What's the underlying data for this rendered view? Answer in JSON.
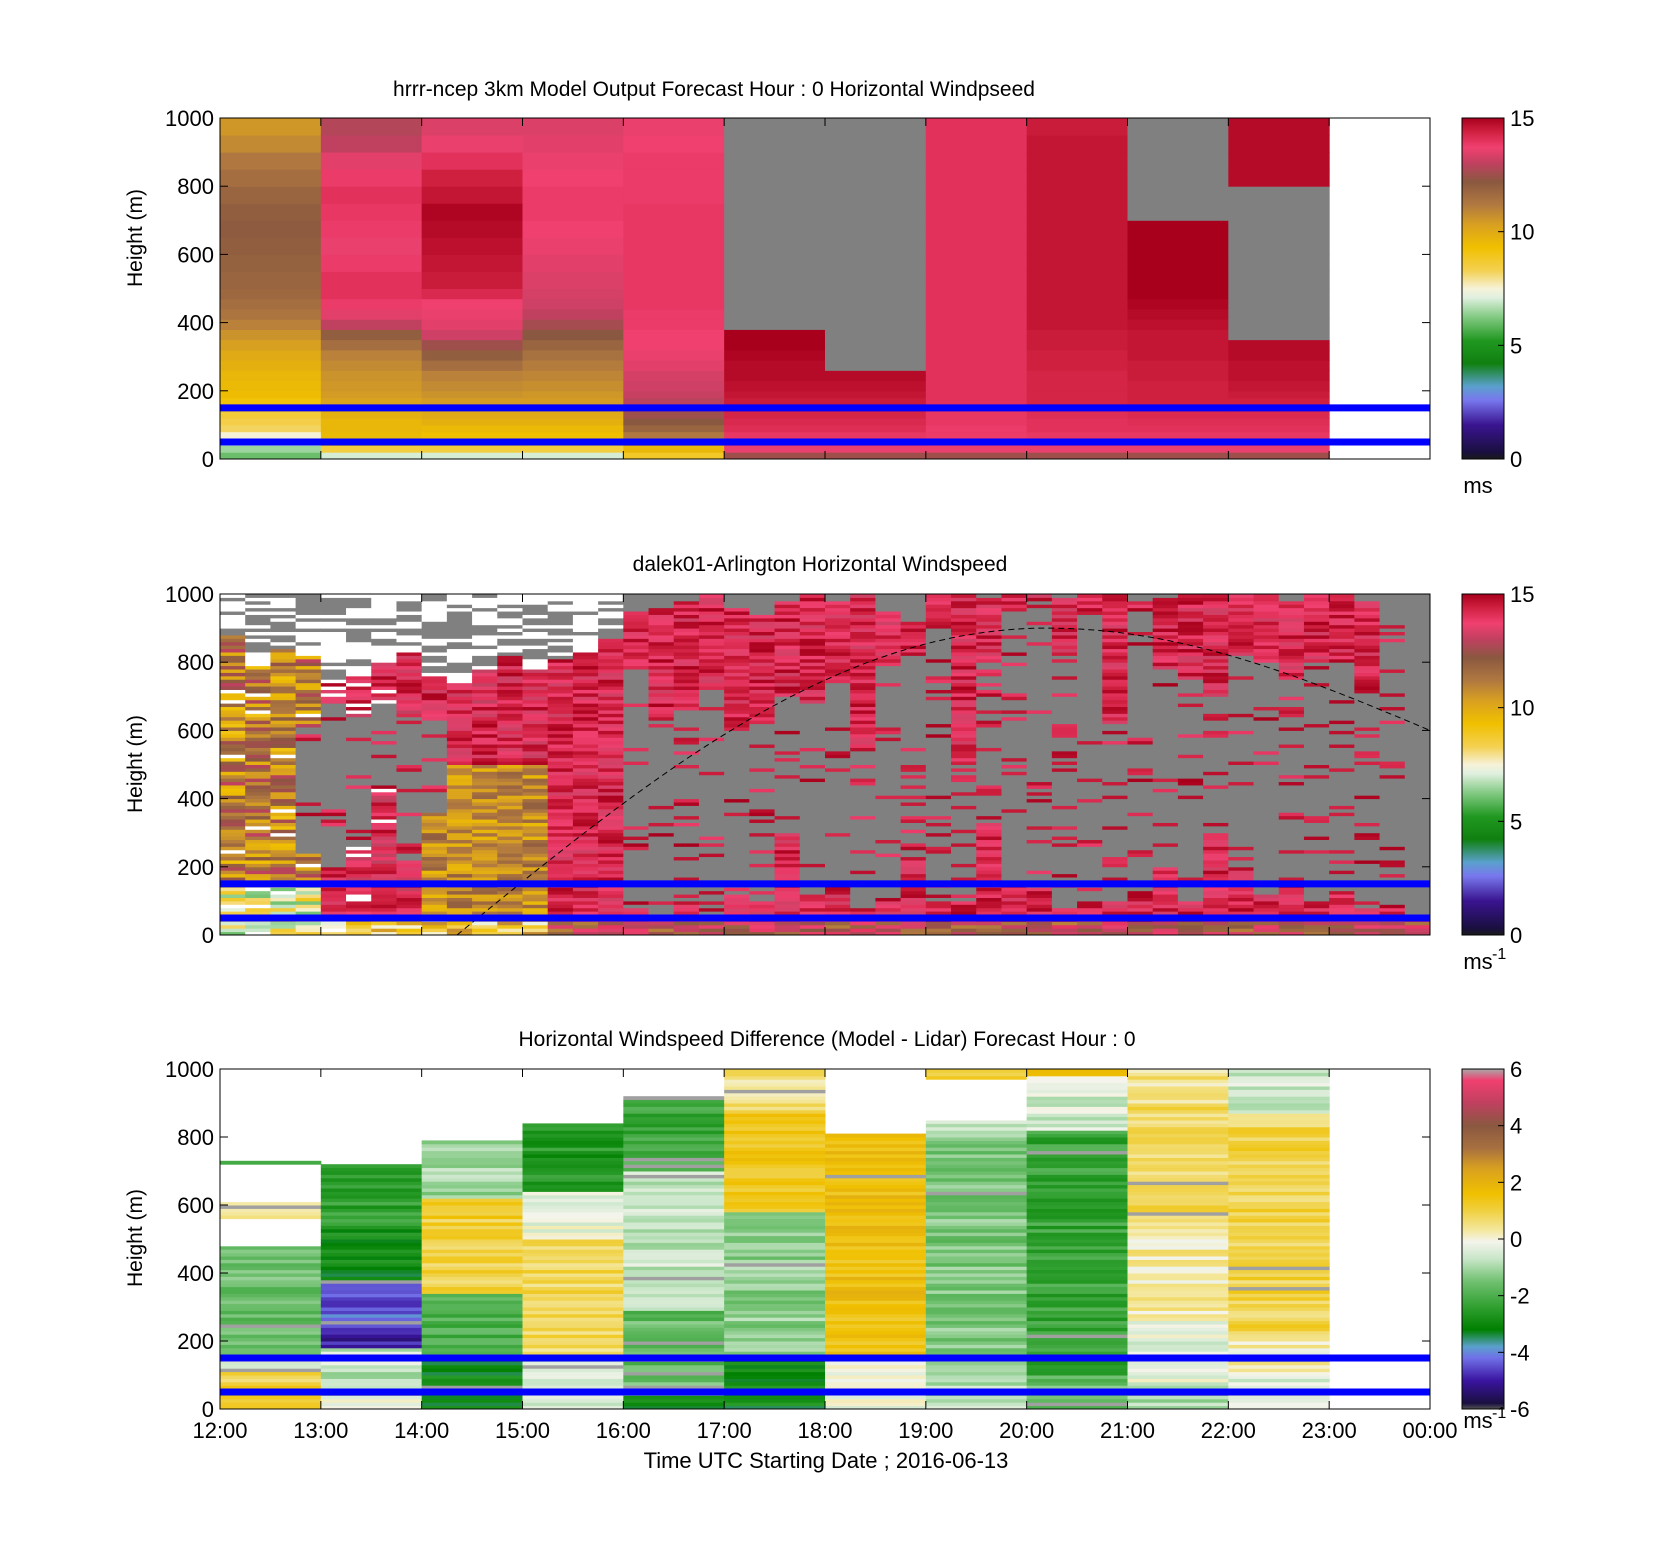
{
  "x_axis": {
    "label": "Time UTC  Starting Date ; 2016-06-13",
    "ticks": [
      "12:00",
      "13:00",
      "14:00",
      "15:00",
      "16:00",
      "17:00",
      "18:00",
      "19:00",
      "20:00",
      "21:00",
      "22:00",
      "23:00",
      "00:00"
    ],
    "range_hours": [
      12,
      24
    ]
  },
  "reference_lines_m": [
    150,
    50
  ],
  "reference_line_color": "#0000ff",
  "nodata_color": "#808080",
  "chart_data": [
    {
      "id": "model",
      "type": "heatmap",
      "title": "hrrr-ncep 3km Model Output   Forecast Hour : 0 Horizontal Windpseed",
      "ylabel": "Height (m)",
      "ylim": [
        0,
        1000
      ],
      "yticks": [
        "0",
        "200",
        "400",
        "600",
        "800",
        "1000"
      ],
      "colorbar": {
        "min": 0,
        "max": 15,
        "ticks": [
          "0",
          "5",
          "10",
          "15"
        ],
        "unit": "ms",
        "unit_sup": ""
      },
      "hours": [
        12,
        13,
        14,
        15,
        16,
        17,
        18,
        19,
        20,
        21,
        22
      ],
      "levels_m": [
        20,
        40,
        60,
        80,
        100,
        120,
        140,
        160,
        180,
        200,
        230,
        260,
        290,
        320,
        350,
        380,
        410,
        440,
        470,
        500,
        550,
        600,
        650,
        700,
        750,
        800,
        850,
        900,
        950,
        1000
      ],
      "values": [
        [
          6,
          6.5,
          7,
          7.5,
          8.2,
          8.4,
          8.6,
          9,
          9.2,
          9.4,
          9.5,
          9.6,
          9.8,
          10,
          10.3,
          10.6,
          11,
          11.3,
          11.5,
          11.7,
          11.8,
          11.9,
          12,
          12.1,
          12,
          11.8,
          11.5,
          11.2,
          10.8,
          10.5
        ],
        [
          7,
          8.5,
          9.3,
          9.5,
          9.6,
          9.6,
          9.8,
          10,
          10.2,
          10.4,
          10.5,
          10.6,
          10.8,
          11,
          11.5,
          12,
          13,
          13.5,
          13.8,
          14,
          14,
          13.8,
          13.6,
          13.8,
          13.9,
          14,
          13.8,
          13.5,
          13,
          12.8
        ],
        [
          7,
          8.5,
          9.1,
          9.3,
          9.5,
          9.8,
          10,
          10.2,
          10.4,
          10.6,
          10.8,
          11,
          11.5,
          12,
          12.5,
          13.2,
          13.5,
          13.6,
          13.7,
          14.2,
          14.5,
          14.6,
          14.7,
          14.8,
          14.9,
          14.6,
          14.4,
          14,
          13.6,
          13.4
        ],
        [
          7,
          8.5,
          9,
          9.3,
          9.5,
          9.8,
          10,
          10.2,
          10.4,
          10.5,
          10.7,
          10.9,
          11.1,
          11.4,
          11.8,
          12.2,
          12.6,
          13,
          13.2,
          13.3,
          13.4,
          13.5,
          13.6,
          13.7,
          13.8,
          13.8,
          13.7,
          13.6,
          13.5,
          13.4
        ],
        [
          8.8,
          9.6,
          10.6,
          11.2,
          11.8,
          12.2,
          12.5,
          12.7,
          12.9,
          13.1,
          13.2,
          13.3,
          13.5,
          13.6,
          13.7,
          13.7,
          13.8,
          13.8,
          13.9,
          13.9,
          13.9,
          13.9,
          13.9,
          13.9,
          13.9,
          13.8,
          13.8,
          13.8,
          13.7,
          13.6
        ],
        [
          12.5,
          13.6,
          13.8,
          13.9,
          14.1,
          14.2,
          14.3,
          14.4,
          14.5,
          14.6,
          14.7,
          14.8,
          14.8,
          14.9,
          15,
          15,
          null,
          null,
          null,
          null,
          null,
          null,
          null,
          null,
          null,
          null,
          null,
          null,
          null,
          null
        ],
        [
          12.5,
          13.6,
          13.8,
          13.9,
          14.1,
          14.2,
          14.3,
          14.4,
          14.5,
          14.6,
          14.7,
          14.8,
          null,
          null,
          null,
          null,
          null,
          null,
          null,
          null,
          null,
          null,
          null,
          null,
          null,
          null,
          null,
          null,
          null,
          null
        ],
        [
          12.5,
          13.6,
          13.7,
          13.8,
          13.8,
          13.9,
          13.9,
          14,
          14,
          14,
          14,
          14,
          14,
          14,
          14,
          14,
          14,
          14,
          14,
          14,
          14,
          14,
          14,
          14,
          14,
          14,
          14,
          14,
          14,
          14
        ],
        [
          12.5,
          13.6,
          13.8,
          13.9,
          14,
          14,
          14.1,
          14.2,
          14.3,
          14.3,
          14.3,
          14.3,
          14.4,
          14.4,
          14.5,
          14.5,
          14.6,
          14.6,
          14.6,
          14.6,
          14.6,
          14.6,
          14.6,
          14.6,
          14.6,
          14.6,
          14.6,
          14.6,
          14.6,
          14.5
        ],
        [
          12.5,
          13.6,
          13.8,
          13.9,
          14,
          14.1,
          14.2,
          14.3,
          14.4,
          14.4,
          14.4,
          14.5,
          14.5,
          14.6,
          14.6,
          14.6,
          14.7,
          14.8,
          14.9,
          15,
          15,
          15,
          15,
          15,
          null,
          null,
          null,
          null,
          null,
          null
        ],
        [
          12.5,
          13.6,
          13.8,
          13.9,
          14,
          14.1,
          14.2,
          14.3,
          14.4,
          14.5,
          14.6,
          14.7,
          14.7,
          14.8,
          14.8,
          null,
          null,
          null,
          null,
          null,
          null,
          null,
          null,
          null,
          null,
          null,
          14.8,
          14.8,
          14.8,
          14.8
        ]
      ]
    },
    {
      "id": "lidar",
      "type": "heatmap",
      "title": "dalek01-Arlington  Horizontal Windspeed",
      "ylabel": "Height (m)",
      "ylim": [
        0,
        1000
      ],
      "yticks": [
        "0",
        "200",
        "400",
        "600",
        "800",
        "1000"
      ],
      "colorbar": {
        "min": 0,
        "max": 15,
        "ticks": [
          "0",
          "5",
          "10",
          "15"
        ],
        "unit": "ms",
        "unit_sup": "-1"
      },
      "period_hours": 0.25,
      "top_valid_m": [
        880,
        790,
        840,
        820,
        740,
        760,
        800,
        830,
        760,
        740,
        780,
        820,
        780,
        810,
        830,
        870,
        950,
        960,
        980,
        1000,
        960,
        940,
        980,
        1000,
        980,
        1000,
        950,
        920,
        1000,
        1000,
        990,
        1000,
        1000,
        990,
        1000,
        1000,
        980,
        990,
        1000,
        1000,
        1000,
        1000,
        980,
        1000,
        1000,
        980,
        920,
        60
      ],
      "gray_band_m": [
        [
          null,
          null
        ],
        [
          null,
          null
        ],
        [
          null,
          null
        ],
        [
          240,
          610
        ],
        [
          200,
          680
        ],
        [
          260,
          640
        ],
        [
          440,
          680
        ],
        [
          220,
          640
        ],
        [
          360,
          630
        ],
        [
          null,
          null
        ],
        [
          null,
          null
        ],
        [
          null,
          null
        ],
        [
          null,
          null
        ],
        [
          null,
          null
        ],
        [
          null,
          null
        ],
        [
          null,
          null
        ],
        [
          80,
          780
        ],
        [
          60,
          640
        ],
        [
          100,
          660
        ],
        [
          60,
          720
        ],
        [
          120,
          600
        ],
        [
          90,
          620
        ],
        [
          300,
          700
        ],
        [
          120,
          680
        ],
        [
          150,
          740
        ],
        [
          80,
          560
        ],
        [
          110,
          800
        ],
        [
          220,
          820
        ],
        [
          100,
          900
        ],
        [
          100,
          500
        ],
        [
          330,
          800
        ],
        [
          160,
          950
        ],
        [
          140,
          980
        ],
        [
          80,
          820
        ],
        [
          100,
          950
        ],
        [
          100,
          620
        ],
        [
          130,
          950
        ],
        [
          200,
          780
        ],
        [
          100,
          750
        ],
        [
          300,
          700
        ],
        [
          200,
          820
        ],
        [
          120,
          800
        ],
        [
          150,
          750
        ],
        [
          100,
          800
        ],
        [
          130,
          800
        ],
        [
          80,
          720
        ],
        [
          80,
          960
        ],
        [
          100,
          300
        ]
      ],
      "curve": {
        "description": "dashed",
        "start_hour": 14.35,
        "start_m": 0,
        "peak_hour": 20.2,
        "peak_m": 900,
        "end_hour": 24,
        "end_m": 600
      }
    },
    {
      "id": "difference",
      "type": "heatmap",
      "title": "Horizontal Windspeed Difference (Model - Lidar) Forecast Hour : 0",
      "ylabel": "Height (m)",
      "ylim": [
        0,
        1000
      ],
      "yticks": [
        "0",
        "200",
        "400",
        "600",
        "800",
        "1000"
      ],
      "colorbar": {
        "min": -6,
        "max": 6,
        "ticks": [
          "-6",
          "-4",
          "-2",
          "0",
          "2",
          "4",
          "6"
        ],
        "unit": "ms",
        "unit_sup": "-1"
      },
      "hours": [
        12,
        13,
        14,
        15,
        16,
        17,
        18,
        19,
        20,
        21,
        22
      ],
      "columns": [
        {
          "top_m": 730,
          "segments": [
            [
              0,
              40,
              1.2
            ],
            [
              40,
              120,
              1.0
            ],
            [
              120,
              160,
              -0.3
            ],
            [
              160,
              480,
              -1.6
            ],
            [
              480,
              560,
              null
            ],
            [
              560,
              610,
              0.1
            ],
            [
              610,
              720,
              null
            ],
            [
              720,
              730,
              -1.8
            ]
          ]
        },
        {
          "top_m": 720,
          "segments": [
            [
              0,
              40,
              -0.3
            ],
            [
              40,
              120,
              -0.8
            ],
            [
              120,
              180,
              -0.6
            ],
            [
              180,
              240,
              -5.0
            ],
            [
              240,
              380,
              -4.3
            ],
            [
              380,
              470,
              -3.0
            ],
            [
              470,
              540,
              -2.8
            ],
            [
              540,
              720,
              -2.4
            ]
          ]
        },
        {
          "top_m": 790,
          "segments": [
            [
              0,
              160,
              -3.0
            ],
            [
              160,
              340,
              -2.0
            ],
            [
              340,
              560,
              1.0
            ],
            [
              560,
              620,
              1.2
            ],
            [
              620,
              790,
              -1.0
            ]
          ]
        },
        {
          "top_m": 840,
          "segments": [
            [
              0,
              150,
              -0.6
            ],
            [
              150,
              500,
              0.8
            ],
            [
              500,
              640,
              -0.2
            ],
            [
              640,
              840,
              -2.6
            ]
          ]
        },
        {
          "top_m": 920,
          "segments": [
            [
              0,
              40,
              -3.0
            ],
            [
              40,
              290,
              -1.7
            ],
            [
              290,
              700,
              -0.7
            ],
            [
              700,
              910,
              -2.2
            ],
            [
              910,
              920,
              -0.2
            ]
          ]
        },
        {
          "top_m": 1000,
          "segments": [
            [
              0,
              150,
              -3.0
            ],
            [
              150,
              580,
              -1.2
            ],
            [
              580,
              880,
              1.4
            ],
            [
              880,
              1000,
              0.6
            ]
          ]
        },
        {
          "top_m": 810,
          "segments": [
            [
              0,
              150,
              -0.3
            ],
            [
              150,
              810,
              1.6
            ]
          ]
        },
        {
          "top_m": 1000,
          "segments": [
            [
              0,
              100,
              -0.8
            ],
            [
              100,
              800,
              -1.4
            ],
            [
              800,
              850,
              -0.6
            ],
            [
              850,
              970,
              null
            ],
            [
              970,
              1000,
              1.2
            ]
          ]
        },
        {
          "top_m": 1000,
          "segments": [
            [
              0,
              100,
              -1.6
            ],
            [
              100,
              820,
              -2.3
            ],
            [
              820,
              980,
              -0.5
            ],
            [
              980,
              1000,
              1.4
            ]
          ]
        },
        {
          "top_m": 1000,
          "segments": [
            [
              0,
              70,
              -1.0
            ],
            [
              70,
              260,
              -0.3
            ],
            [
              260,
              560,
              0.3
            ],
            [
              560,
              900,
              0.8
            ],
            [
              900,
              1000,
              0.5
            ]
          ]
        },
        {
          "top_m": 1000,
          "segments": [
            [
              0,
              100,
              -0.3
            ],
            [
              100,
              200,
              0.1
            ],
            [
              200,
              870,
              0.9
            ],
            [
              870,
              1000,
              -0.6
            ]
          ]
        }
      ]
    }
  ]
}
